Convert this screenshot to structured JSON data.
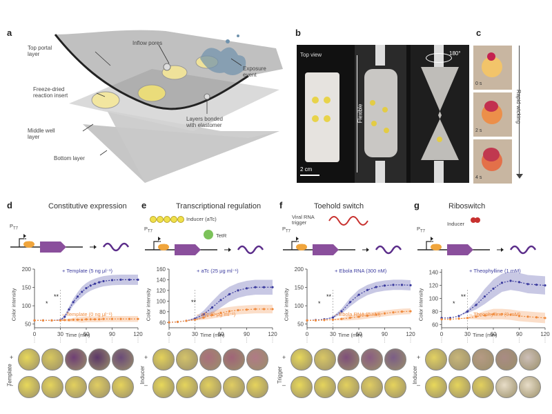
{
  "panel_a": {
    "letter": "a",
    "labels": {
      "top_portal": [
        "Top portal",
        "layer"
      ],
      "inflow": "Inflow pores",
      "freeze_dried": [
        "Freeze-dried",
        "reaction insert"
      ],
      "exposure": [
        "Exposure",
        "event"
      ],
      "bonded": [
        "Layers bonded",
        "with elastomer"
      ],
      "middle": [
        "Middle well",
        "layer"
      ],
      "bottom": "Bottom layer"
    }
  },
  "panel_b": {
    "letter": "b",
    "top_view": "Top view",
    "flexible": "Flexible",
    "scale": "2 cm",
    "angle": "180°"
  },
  "panel_c": {
    "letter": "c",
    "times": [
      "0 s",
      "2 s",
      "4 s"
    ],
    "arrow_label": "Rapid wicking"
  },
  "common": {
    "y_label": "Color intensity",
    "x_label": "Time (min)",
    "x_ticks": [
      "0",
      "30",
      "60",
      "90",
      "120"
    ],
    "promoter": "P",
    "promoter_sub": "T7",
    "gene": "LacZ",
    "row_plus": "+",
    "row_minus": "–"
  },
  "panels": [
    {
      "letter": "d",
      "title": "Constitutive expression",
      "y_ticks": [
        "200",
        "150",
        "100",
        "50"
      ],
      "legend_plus": "+ Template (5 ng μl⁻¹)",
      "legend_minus": "– Template (0 ng μl⁻¹)",
      "stars": "**",
      "stars2": "*",
      "row_label": "Template"
    },
    {
      "letter": "e",
      "title": "Transcriptional regulation",
      "y_ticks": [
        "160",
        "140",
        "120",
        "100",
        "80",
        "60"
      ],
      "legend_plus": "+ aTc (25 μg ml⁻¹)",
      "legend_minus": "– aTc (0 μg ml⁻¹)",
      "stars": "**",
      "inducer": "Inducer (aTc)",
      "repressor": "TetR",
      "row_label": "Inducer"
    },
    {
      "letter": "f",
      "title": "Toehold switch",
      "y_ticks": [
        "200",
        "150",
        "100",
        "50"
      ],
      "legend_plus": "+ Ebola RNA (300 nM)",
      "legend_minus": "– Ebola RNA (0 nM)",
      "stars": "**",
      "stars2": "*",
      "trigger": [
        "Viral RNA",
        "trigger"
      ],
      "row_label": "Trigger"
    },
    {
      "letter": "g",
      "title": "Riboswitch",
      "y_ticks": [
        "140",
        "120",
        "100",
        "80",
        "60"
      ],
      "legend_plus": "+ Theophylline (1 mM)",
      "legend_minus": "– Theophylline (0 mM)",
      "stars": "**",
      "stars2": "*",
      "inducer": "Inducer",
      "row_label": "Inducer"
    }
  ],
  "chart_data": [
    {
      "type": "line",
      "panel": "d",
      "x": [
        0,
        10,
        20,
        30,
        35,
        40,
        45,
        50,
        55,
        60,
        65,
        70,
        75,
        80,
        90,
        100,
        110,
        120
      ],
      "series": [
        {
          "name": "+ Template (5 ng μl⁻¹)",
          "color": "#3b3b9e",
          "values": [
            60,
            60,
            60,
            61,
            70,
            90,
            110,
            125,
            138,
            148,
            155,
            160,
            164,
            167,
            170,
            171,
            171,
            171
          ]
        },
        {
          "name": "– Template (0 ng μl⁻¹)",
          "color": "#f08a3c",
          "values": [
            60,
            60,
            60,
            60,
            61,
            61,
            62,
            62,
            62,
            63,
            63,
            63,
            63,
            64,
            64,
            64,
            64,
            64
          ]
        }
      ],
      "ylim": [
        40,
        200
      ],
      "xlim": [
        0,
        120
      ],
      "xlabel": "Time (min)",
      "ylabel": "Color intensity"
    },
    {
      "type": "line",
      "panel": "e",
      "x": [
        0,
        10,
        20,
        30,
        40,
        50,
        60,
        70,
        80,
        90,
        100,
        110,
        120
      ],
      "series": [
        {
          "name": "+ aTc (25 μg ml⁻¹)",
          "color": "#3b3b9e",
          "values": [
            60,
            61,
            63,
            67,
            75,
            88,
            102,
            113,
            120,
            124,
            126,
            126,
            126
          ]
        },
        {
          "name": "– aTc (0 μg ml⁻¹)",
          "color": "#f08a3c",
          "values": [
            60,
            61,
            63,
            65,
            69,
            74,
            78,
            81,
            83,
            84,
            85,
            85,
            85
          ]
        }
      ],
      "ylim": [
        50,
        160
      ],
      "xlim": [
        0,
        120
      ],
      "xlabel": "Time (min)",
      "ylabel": "Color intensity"
    },
    {
      "type": "line",
      "panel": "f",
      "x": [
        0,
        10,
        20,
        30,
        40,
        50,
        60,
        70,
        80,
        90,
        100,
        110,
        120
      ],
      "series": [
        {
          "name": "+ Ebola RNA (300 nM)",
          "color": "#3b3b9e",
          "values": [
            60,
            61,
            63,
            68,
            85,
            110,
            130,
            143,
            151,
            155,
            157,
            157,
            156
          ]
        },
        {
          "name": "– Ebola RNA (0 nM)",
          "color": "#f08a3c",
          "values": [
            60,
            60,
            61,
            62,
            64,
            67,
            70,
            73,
            76,
            79,
            82,
            84,
            85
          ]
        }
      ],
      "ylim": [
        40,
        200
      ],
      "xlim": [
        0,
        120
      ],
      "xlabel": "Time (min)",
      "ylabel": "Color intensity"
    },
    {
      "type": "line",
      "panel": "g",
      "x": [
        0,
        10,
        20,
        30,
        40,
        50,
        60,
        70,
        80,
        90,
        100,
        110,
        120
      ],
      "series": [
        {
          "name": "+ Theophylline (1 mM)",
          "color": "#3b3b9e",
          "values": [
            70,
            70,
            73,
            80,
            90,
            103,
            115,
            124,
            127,
            125,
            122,
            121,
            120
          ]
        },
        {
          "name": "– Theophylline (0 mM)",
          "color": "#f08a3c",
          "values": [
            68,
            68,
            69,
            70,
            72,
            74,
            76,
            76,
            75,
            73,
            72,
            71,
            70
          ]
        }
      ],
      "ylim": [
        55,
        145
      ],
      "xlim": [
        0,
        120
      ],
      "xlabel": "Time (min)",
      "ylabel": "Color intensity"
    }
  ]
}
